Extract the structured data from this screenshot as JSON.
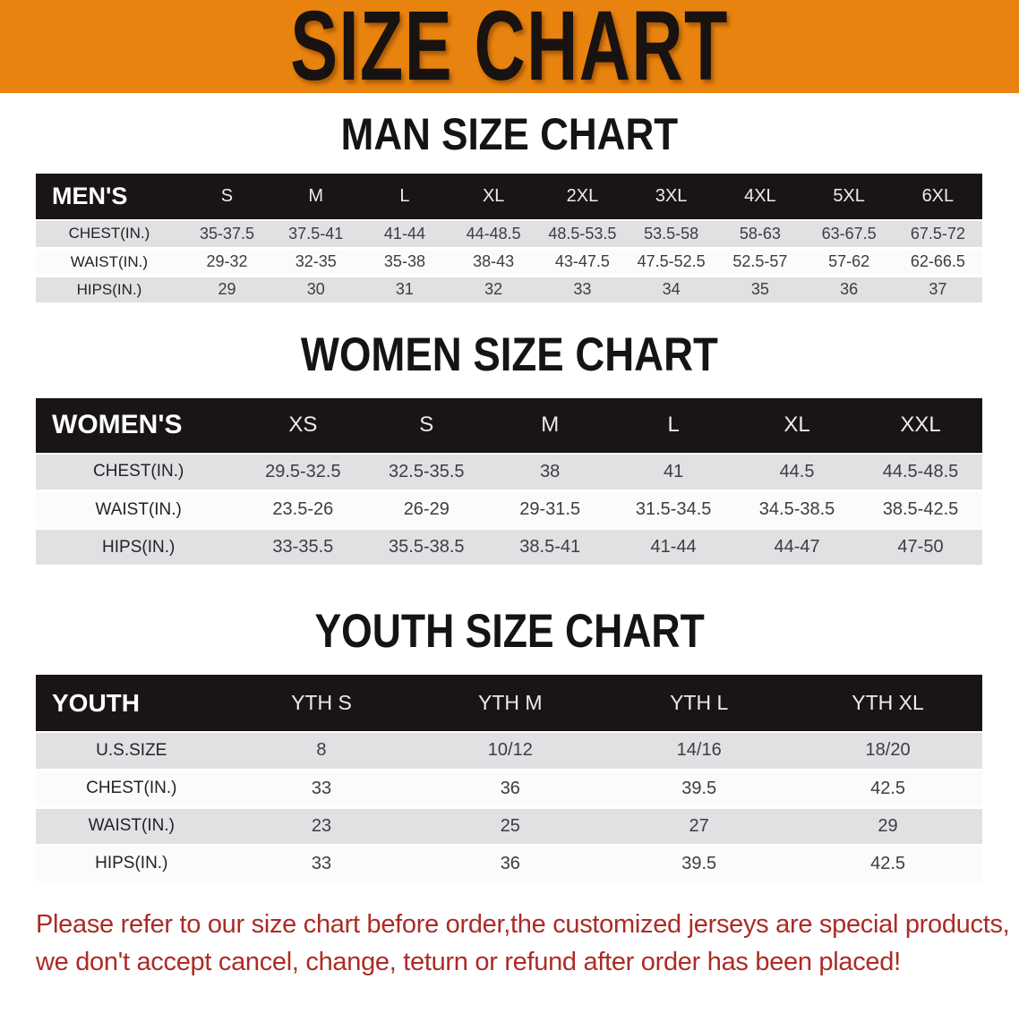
{
  "banner": {
    "title": "SIZE CHART"
  },
  "colors": {
    "banner_bg": "#E8830F",
    "header_bar_bg": "#191514",
    "row_shaded": "#E1E1E3",
    "row_plain": "#FBFBFB",
    "notice_text": "#AC2B26"
  },
  "sections": [
    {
      "title": "MAN SIZE CHART",
      "group_label": "MEN'S",
      "sizes": [
        "S",
        "M",
        "L",
        "XL",
        "2XL",
        "3XL",
        "4XL",
        "5XL",
        "6XL"
      ],
      "rows": [
        {
          "label": "CHEST(IN.)",
          "values": [
            "35-37.5",
            "37.5-41",
            "41-44",
            "44-48.5",
            "48.5-53.5",
            "53.5-58",
            "58-63",
            "63-67.5",
            "67.5-72"
          ]
        },
        {
          "label": "WAIST(IN.)",
          "values": [
            "29-32",
            "32-35",
            "35-38",
            "38-43",
            "43-47.5",
            "47.5-52.5",
            "52.5-57",
            "57-62",
            "62-66.5"
          ]
        },
        {
          "label": "HIPS(IN.)",
          "values": [
            "29",
            "30",
            "31",
            "32",
            "33",
            "34",
            "35",
            "36",
            "37"
          ]
        }
      ]
    },
    {
      "title": "WOMEN SIZE CHART",
      "group_label": "WOMEN'S",
      "sizes": [
        "XS",
        "S",
        "M",
        "L",
        "XL",
        "XXL"
      ],
      "rows": [
        {
          "label": "CHEST(IN.)",
          "values": [
            "29.5-32.5",
            "32.5-35.5",
            "38",
            "41",
            "44.5",
            "44.5-48.5"
          ]
        },
        {
          "label": "WAIST(IN.)",
          "values": [
            "23.5-26",
            "26-29",
            "29-31.5",
            "31.5-34.5",
            "34.5-38.5",
            "38.5-42.5"
          ]
        },
        {
          "label": "HIPS(IN.)",
          "values": [
            "33-35.5",
            "35.5-38.5",
            "38.5-41",
            "41-44",
            "44-47",
            "47-50"
          ]
        }
      ]
    },
    {
      "title": "YOUTH SIZE CHART",
      "group_label": "YOUTH",
      "sizes": [
        "YTH S",
        "YTH M",
        "YTH L",
        "YTH XL"
      ],
      "rows": [
        {
          "label": "U.S.SIZE",
          "values": [
            "8",
            "10/12",
            "14/16",
            "18/20"
          ]
        },
        {
          "label": "CHEST(IN.)",
          "values": [
            "33",
            "36",
            "39.5",
            "42.5"
          ]
        },
        {
          "label": "WAIST(IN.)",
          "values": [
            "23",
            "25",
            "27",
            "29"
          ]
        },
        {
          "label": "HIPS(IN.)",
          "values": [
            "33",
            "36",
            "39.5",
            "42.5"
          ]
        }
      ]
    }
  ],
  "notice": {
    "line1": "Please refer to our size chart before order,the customized jerseys are special products,",
    "line2": "we don't accept cancel, change, teturn or refund after order has been placed!"
  }
}
